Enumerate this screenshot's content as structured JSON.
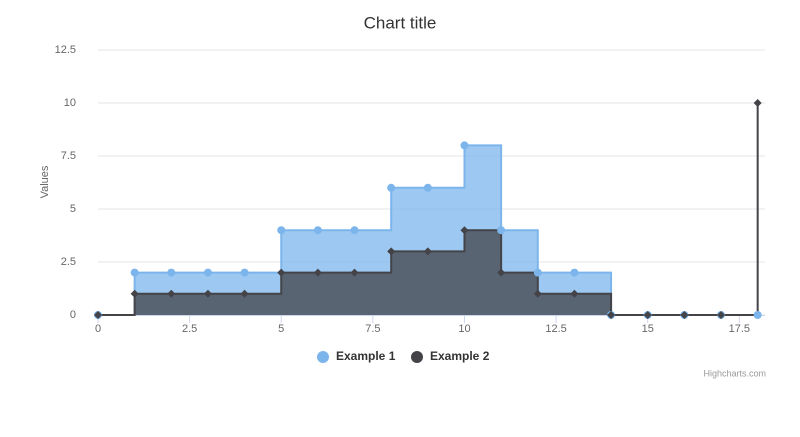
{
  "chart_data": {
    "type": "step-area",
    "title": "Chart title",
    "y_axis_label": "Values",
    "x": [
      0,
      1,
      2,
      3,
      4,
      5,
      6,
      7,
      8,
      9,
      10,
      11,
      12,
      13,
      14,
      15,
      16,
      17,
      18
    ],
    "series": [
      {
        "name": "Example 1",
        "color": "#7cb5ec",
        "marker": "circle",
        "values": [
          0,
          2,
          2,
          2,
          2,
          4,
          4,
          4,
          6,
          6,
          8,
          4,
          2,
          2,
          0,
          0,
          0,
          0,
          0
        ]
      },
      {
        "name": "Example 2",
        "color": "#434348",
        "marker": "diamond",
        "values": [
          0,
          1,
          1,
          1,
          1,
          2,
          2,
          2,
          3,
          3,
          4,
          2,
          1,
          1,
          0,
          0,
          0,
          0,
          10
        ]
      }
    ],
    "xlim": [
      0,
      18.2
    ],
    "xticks": [
      0,
      2.5,
      5,
      7.5,
      10,
      12.5,
      15,
      17.5
    ],
    "ylim": [
      0,
      12.5
    ],
    "yticks": [
      0,
      2.5,
      5,
      7.5,
      10,
      12.5
    ],
    "grid": true,
    "legend": "bottom",
    "credits": "Highcharts.com"
  }
}
